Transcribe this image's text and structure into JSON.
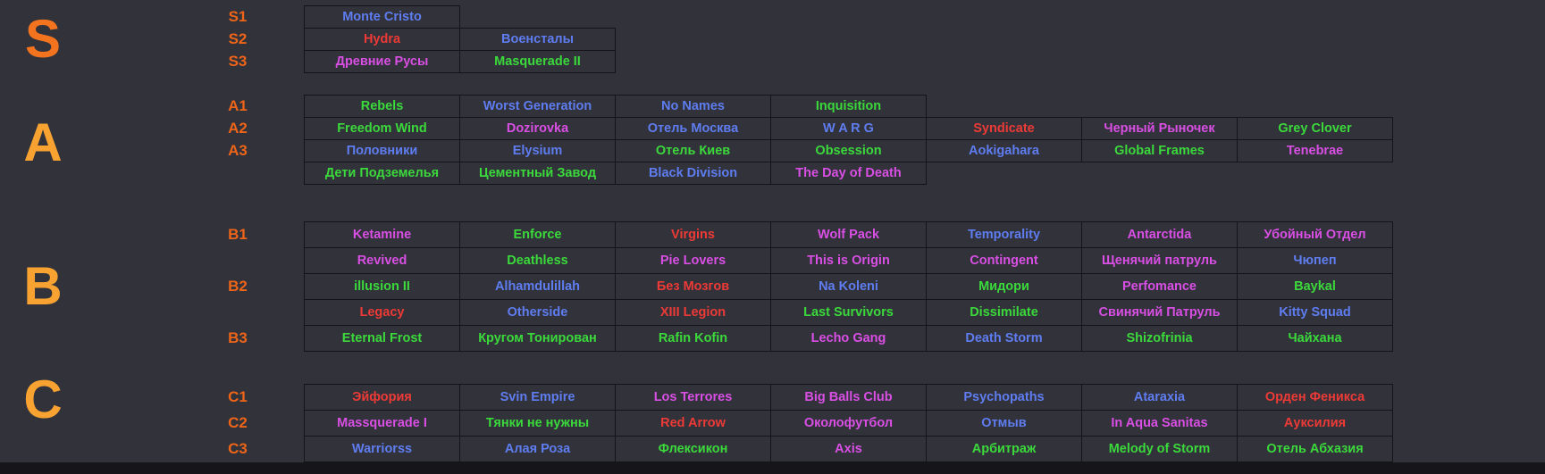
{
  "page": {
    "background": "#31323a",
    "border": "#141418",
    "bottom_strip": "#15151a"
  },
  "colors": {
    "blue": "#5f7df0",
    "red": "#ee3a36",
    "magenta": "#d94fe4",
    "green": "#3bd93b",
    "label_orange": "#ee6418"
  },
  "tiers": [
    {
      "letter": "S",
      "letter_color": "#f3731e",
      "rows": [
        {
          "label": "S1",
          "cells": [
            {
              "t": "Monte Cristo",
              "c": "blue"
            }
          ]
        },
        {
          "label": "S2",
          "cells": [
            {
              "t": "Hydra",
              "c": "red"
            },
            {
              "t": "Военсталы",
              "c": "blue"
            }
          ]
        },
        {
          "label": "S3",
          "cells": [
            {
              "t": "Древние Русы",
              "c": "magenta"
            },
            {
              "t": "Masquerade II",
              "c": "green"
            }
          ]
        }
      ]
    },
    {
      "letter": "A",
      "letter_color": "#f8a232",
      "rows": [
        {
          "label": "A1",
          "cells": [
            {
              "t": "Rebels",
              "c": "green"
            },
            {
              "t": "Worst Generation",
              "c": "blue"
            },
            {
              "t": "No Names",
              "c": "blue"
            },
            {
              "t": "Inquisition",
              "c": "green"
            }
          ]
        },
        {
          "label": "A2",
          "cells": [
            {
              "t": "Freedom Wind",
              "c": "green"
            },
            {
              "t": "Dozirovka",
              "c": "magenta"
            },
            {
              "t": "Отель Москва",
              "c": "blue"
            },
            {
              "t": "W A R G",
              "c": "blue"
            },
            {
              "t": "Syndicate",
              "c": "red"
            },
            {
              "t": "Черный Рыночек",
              "c": "magenta"
            },
            {
              "t": "Grey Clover",
              "c": "green"
            }
          ]
        },
        {
          "label": "A3",
          "cells": [
            {
              "t": "Половники",
              "c": "blue"
            },
            {
              "t": "Elysium",
              "c": "blue"
            },
            {
              "t": "Отель Киев",
              "c": "green"
            },
            {
              "t": "Obsession",
              "c": "green"
            },
            {
              "t": "Aokigahara",
              "c": "blue"
            },
            {
              "t": "Global Frames",
              "c": "green"
            },
            {
              "t": "Tenebrae",
              "c": "magenta"
            }
          ]
        },
        {
          "label": "",
          "cells": [
            {
              "t": "Дети Подземелья",
              "c": "green"
            },
            {
              "t": "Цементный Завод",
              "c": "green"
            },
            {
              "t": "Black Division",
              "c": "blue"
            },
            {
              "t": "The Day of Death",
              "c": "magenta"
            }
          ]
        }
      ]
    },
    {
      "letter": "B",
      "letter_color": "#f8a232",
      "rows": [
        {
          "label": "B1",
          "cells": [
            {
              "t": "Ketamine",
              "c": "magenta"
            },
            {
              "t": "Enforce",
              "c": "green"
            },
            {
              "t": "Virgins",
              "c": "red"
            },
            {
              "t": "Wolf Pack",
              "c": "magenta"
            },
            {
              "t": "Temporality",
              "c": "blue"
            },
            {
              "t": "Antarctida",
              "c": "magenta"
            },
            {
              "t": "Убойный Отдел",
              "c": "magenta"
            }
          ]
        },
        {
          "label": "",
          "cells": [
            {
              "t": "Revived",
              "c": "magenta"
            },
            {
              "t": "Deathless",
              "c": "green"
            },
            {
              "t": "Pie Lovers",
              "c": "magenta"
            },
            {
              "t": "This is Origin",
              "c": "magenta"
            },
            {
              "t": "Contingent",
              "c": "magenta"
            },
            {
              "t": "Щенячий патруль",
              "c": "magenta"
            },
            {
              "t": "Чюпеп",
              "c": "blue"
            }
          ]
        },
        {
          "label": "B2",
          "cells": [
            {
              "t": "illusion II",
              "c": "green"
            },
            {
              "t": "Alhamdulillah",
              "c": "blue"
            },
            {
              "t": "Без Мозгов",
              "c": "red"
            },
            {
              "t": "Na Koleni",
              "c": "blue"
            },
            {
              "t": "Мидори",
              "c": "green"
            },
            {
              "t": "Perfomance",
              "c": "magenta"
            },
            {
              "t": "Baykal",
              "c": "green"
            }
          ]
        },
        {
          "label": "",
          "cells": [
            {
              "t": "Legacy",
              "c": "red"
            },
            {
              "t": "Otherside",
              "c": "blue"
            },
            {
              "t": "XIII Legion",
              "c": "red"
            },
            {
              "t": "Last Survivors",
              "c": "green"
            },
            {
              "t": "Dissimilate",
              "c": "green"
            },
            {
              "t": "Свинячий Патруль",
              "c": "magenta"
            },
            {
              "t": "Kitty Squad",
              "c": "blue"
            }
          ]
        },
        {
          "label": "B3",
          "cells": [
            {
              "t": "Eternal Frost",
              "c": "green"
            },
            {
              "t": "Кругом Тонирован",
              "c": "green"
            },
            {
              "t": "Rafin Kofin",
              "c": "green"
            },
            {
              "t": "Lecho Gang",
              "c": "magenta"
            },
            {
              "t": "Death Storm",
              "c": "blue"
            },
            {
              "t": "Shizofrinia",
              "c": "green"
            },
            {
              "t": "Чайхана",
              "c": "green"
            }
          ]
        }
      ]
    },
    {
      "letter": "C",
      "letter_color": "#f8a232",
      "rows": [
        {
          "label": "C1",
          "cells": [
            {
              "t": "Эйфория",
              "c": "red"
            },
            {
              "t": "Svin Empire",
              "c": "blue"
            },
            {
              "t": "Los Terrores",
              "c": "magenta"
            },
            {
              "t": "Big Balls Club",
              "c": "magenta"
            },
            {
              "t": "Psychopaths",
              "c": "blue"
            },
            {
              "t": "Ataraxia",
              "c": "blue"
            },
            {
              "t": "Орден Феникса",
              "c": "red"
            }
          ]
        },
        {
          "label": "C2",
          "cells": [
            {
              "t": "Massquerade I",
              "c": "magenta"
            },
            {
              "t": "Тянки не нужны",
              "c": "green"
            },
            {
              "t": "Red Arrow",
              "c": "red"
            },
            {
              "t": "Околофутбол",
              "c": "magenta"
            },
            {
              "t": "Отмыв",
              "c": "blue"
            },
            {
              "t": "In Aqua Sanitas",
              "c": "magenta"
            },
            {
              "t": "Ауксилия",
              "c": "red"
            }
          ]
        },
        {
          "label": "C3",
          "cells": [
            {
              "t": "Warriorss",
              "c": "blue"
            },
            {
              "t": "Алая Роза",
              "c": "blue"
            },
            {
              "t": "Флексикон",
              "c": "green"
            },
            {
              "t": "Axis",
              "c": "magenta"
            },
            {
              "t": "Арбитраж",
              "c": "green"
            },
            {
              "t": "Melody of Storm",
              "c": "green"
            },
            {
              "t": "Отель Абхазия",
              "c": "green"
            }
          ]
        }
      ]
    }
  ]
}
